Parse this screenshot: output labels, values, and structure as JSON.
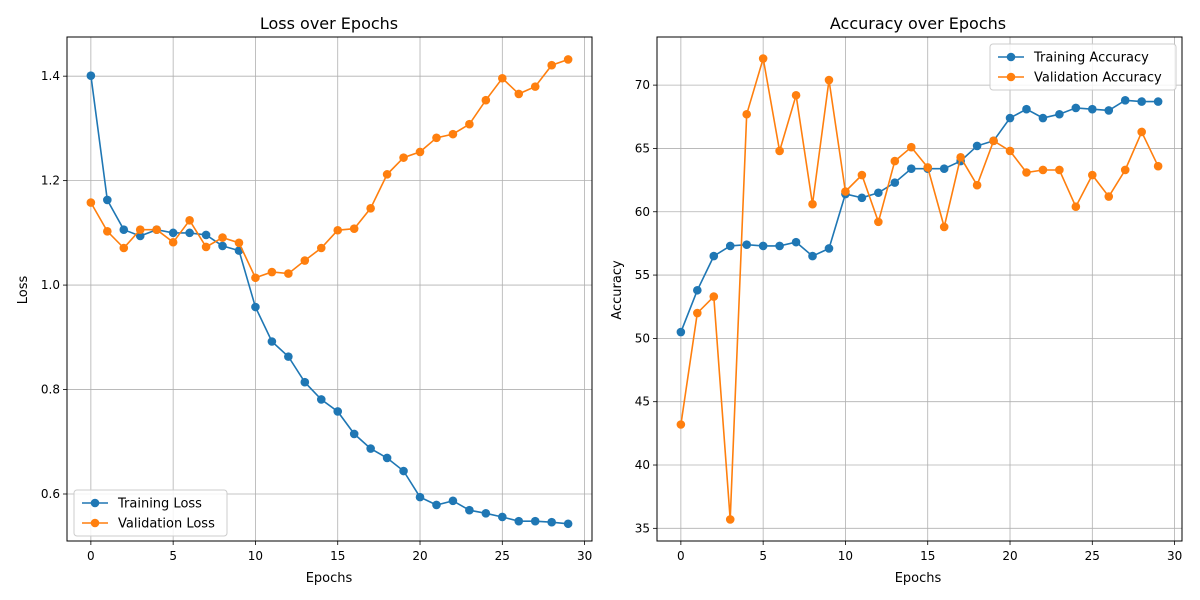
{
  "chart_data": [
    {
      "type": "line",
      "title": "Loss over Epochs",
      "xlabel": "Epochs",
      "ylabel": "Loss",
      "xlim": [
        -1.45,
        30.45
      ],
      "ylim": [
        0.51,
        1.475
      ],
      "xticks": [
        "0",
        "5",
        "10",
        "15",
        "20",
        "25",
        "30"
      ],
      "yticks": [
        "0.6",
        "0.8",
        "1.0",
        "1.2",
        "1.4"
      ],
      "grid": true,
      "legend_position": "lower-left",
      "x": [
        0,
        1,
        2,
        3,
        4,
        5,
        6,
        7,
        8,
        9,
        10,
        11,
        12,
        13,
        14,
        15,
        16,
        17,
        18,
        19,
        20,
        21,
        22,
        23,
        24,
        25,
        26,
        27,
        28,
        29
      ],
      "series": [
        {
          "name": "Training Loss",
          "color": "#1f77b4",
          "values": [
            1.401,
            1.163,
            1.106,
            1.094,
            1.106,
            1.1,
            1.1,
            1.096,
            1.075,
            1.066,
            0.958,
            0.892,
            0.863,
            0.814,
            0.781,
            0.758,
            0.715,
            0.687,
            0.669,
            0.644,
            0.594,
            0.579,
            0.587,
            0.569,
            0.563,
            0.556,
            0.548,
            0.548,
            0.546,
            0.543
          ]
        },
        {
          "name": "Validation Loss",
          "color": "#ff7f0e",
          "values": [
            1.158,
            1.103,
            1.071,
            1.106,
            1.106,
            1.082,
            1.124,
            1.073,
            1.091,
            1.081,
            1.014,
            1.025,
            1.022,
            1.047,
            1.071,
            1.105,
            1.108,
            1.147,
            1.212,
            1.244,
            1.255,
            1.282,
            1.289,
            1.308,
            1.354,
            1.396,
            1.366,
            1.38,
            1.421,
            1.432
          ]
        }
      ]
    },
    {
      "type": "line",
      "title": "Accuracy over Epochs",
      "xlabel": "Epochs",
      "ylabel": "Accuracy",
      "xlim": [
        -1.45,
        30.45
      ],
      "ylim": [
        34.0,
        73.8
      ],
      "xticks": [
        "0",
        "5",
        "10",
        "15",
        "20",
        "25",
        "30"
      ],
      "yticks": [
        "35",
        "40",
        "45",
        "50",
        "55",
        "60",
        "65",
        "70"
      ],
      "grid": true,
      "legend_position": "upper-right",
      "x": [
        0,
        1,
        2,
        3,
        4,
        5,
        6,
        7,
        8,
        9,
        10,
        11,
        12,
        13,
        14,
        15,
        16,
        17,
        18,
        19,
        20,
        21,
        22,
        23,
        24,
        25,
        26,
        27,
        28,
        29
      ],
      "series": [
        {
          "name": "Training Accuracy",
          "color": "#1f77b4",
          "values": [
            50.5,
            53.8,
            56.5,
            57.3,
            57.4,
            57.3,
            57.3,
            57.6,
            56.5,
            57.1,
            61.4,
            61.1,
            61.5,
            62.3,
            63.4,
            63.4,
            63.4,
            64.0,
            65.2,
            65.6,
            67.4,
            68.1,
            67.4,
            67.7,
            68.2,
            68.1,
            68.0,
            68.8,
            68.7,
            68.7
          ]
        },
        {
          "name": "Validation Accuracy",
          "color": "#ff7f0e",
          "values": [
            43.2,
            52.0,
            53.3,
            35.7,
            67.7,
            72.1,
            64.8,
            69.2,
            60.6,
            70.4,
            61.6,
            62.9,
            59.2,
            64.0,
            65.1,
            63.5,
            58.8,
            64.3,
            62.1,
            65.6,
            64.8,
            63.1,
            63.3,
            63.3,
            60.4,
            62.9,
            61.2,
            63.3,
            66.3,
            63.6
          ]
        }
      ]
    }
  ]
}
